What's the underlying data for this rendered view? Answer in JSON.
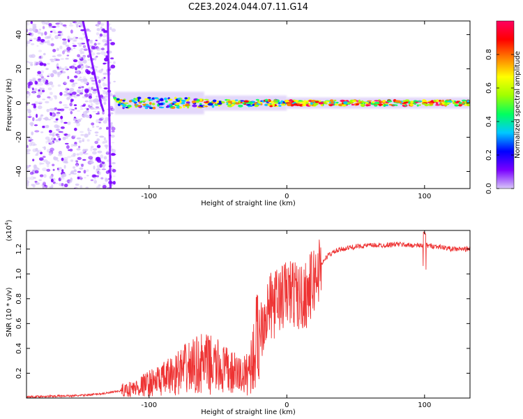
{
  "title": "C2E3.2024.044.07.11.G14",
  "chart_data": [
    {
      "type": "heatmap",
      "xlabel": "Height of straight line (km)",
      "ylabel": "Frequency (Hz)",
      "xlim": [
        -189,
        133
      ],
      "ylim": [
        -50,
        48
      ],
      "xticks": [
        -100,
        0,
        100
      ],
      "yticks": [
        -40,
        -20,
        0,
        20,
        40
      ],
      "xtick_labels": [
        "-100",
        "0",
        "100"
      ],
      "ytick_labels": [
        "-40",
        "-20",
        "0",
        "20",
        "40"
      ],
      "colorbar": {
        "label": "Normalized spectral amplitude",
        "range": [
          0.0,
          1.0
        ],
        "ticks": [
          0.0,
          0.2,
          0.4,
          0.6,
          0.8
        ],
        "tick_labels": [
          "0.0",
          "0.2",
          "0.4",
          "0.6",
          "0.8"
        ],
        "colormap": [
          "#d8c8f8",
          "#7a00ff",
          "#0000ff",
          "#00c8ff",
          "#00ff60",
          "#a0ff00",
          "#ffff00",
          "#ff8000",
          "#ff0000",
          "#ff0060"
        ]
      },
      "features": [
        {
          "x": [
            -189,
            -125
          ],
          "freq_center": 0,
          "freq_spread": 48,
          "amplitude": 0.15
        },
        {
          "x": [
            -125,
            -60
          ],
          "freq_center": 0,
          "freq_spread": 3,
          "amplitude": 0.45
        },
        {
          "x": [
            -60,
            0
          ],
          "freq_center": 0,
          "freq_spread": 2,
          "amplitude": 0.55
        },
        {
          "x": [
            0,
            133
          ],
          "freq_center": 0,
          "freq_spread": 1.5,
          "amplitude": 0.7
        }
      ]
    },
    {
      "type": "line",
      "xlabel": "Height of straight line (km)",
      "ylabel": "SNR (10 * v/v)",
      "scale_label": "(x10",
      "scale_exp": "4",
      "scale_close": ")",
      "xlim": [
        -189,
        133
      ],
      "ylim": [
        0.0,
        1.35
      ],
      "xticks": [
        -100,
        0,
        100
      ],
      "yticks": [
        0.2,
        0.4,
        0.6,
        0.8,
        1.0,
        1.2
      ],
      "xtick_labels": [
        "-100",
        "0",
        "100"
      ],
      "ytick_labels": [
        "0.2",
        "0.4",
        "0.6",
        "0.8",
        "1.0",
        "1.2"
      ],
      "color": "#ee3333",
      "series": [
        {
          "x": [
            -189,
            -170,
            -150,
            -140,
            -130,
            -120,
            -110,
            -100,
            -90,
            -80,
            -70,
            -60,
            -50,
            -40,
            -30,
            -25,
            -20,
            -15,
            -10,
            -5,
            0,
            5,
            10,
            15,
            20,
            25,
            30,
            35,
            40,
            50,
            60,
            70,
            80,
            90,
            100,
            110,
            120,
            133
          ],
          "y": [
            0.01,
            0.015,
            0.02,
            0.03,
            0.04,
            0.06,
            0.08,
            0.12,
            0.15,
            0.2,
            0.25,
            0.28,
            0.25,
            0.2,
            0.18,
            0.3,
            0.55,
            0.7,
            0.75,
            0.8,
            0.85,
            0.85,
            0.8,
            0.85,
            0.95,
            1.08,
            1.15,
            1.18,
            1.2,
            1.22,
            1.23,
            1.23,
            1.24,
            1.23,
            1.23,
            1.22,
            1.2,
            1.2
          ]
        }
      ]
    }
  ]
}
